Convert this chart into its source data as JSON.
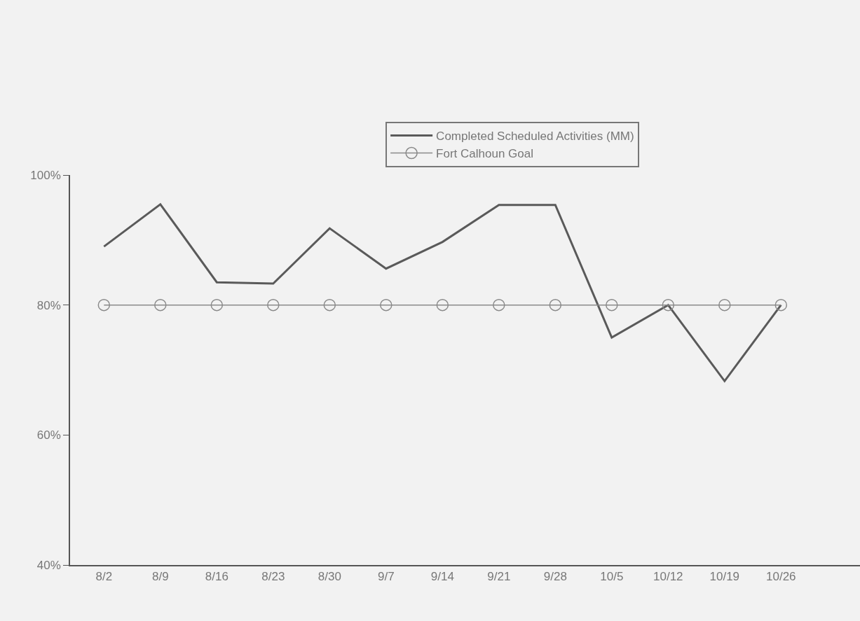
{
  "chart_data": {
    "type": "line",
    "categories": [
      "8/2",
      "8/9",
      "8/16",
      "8/23",
      "8/30",
      "9/7",
      "9/14",
      "9/21",
      "9/28",
      "10/5",
      "10/12",
      "10/19",
      "10/26"
    ],
    "series": [
      {
        "name": "Completed Scheduled Activities (MM)",
        "color": "#5a5a5a",
        "marker": "none",
        "values": [
          89,
          95.5,
          83.5,
          83.3,
          91.8,
          85.6,
          89.7,
          95.4,
          95.4,
          75,
          80,
          68.3,
          80
        ]
      },
      {
        "name": "Fort Calhoun Goal",
        "color": "#8a8a8a",
        "marker": "circle",
        "values": [
          80,
          80,
          80,
          80,
          80,
          80,
          80,
          80,
          80,
          80,
          80,
          80,
          80
        ]
      }
    ],
    "ylim": [
      40,
      100
    ],
    "yticks": [
      {
        "value": 40,
        "label": "40%"
      },
      {
        "value": 60,
        "label": "60%"
      },
      {
        "value": 80,
        "label": "80%"
      },
      {
        "value": 100,
        "label": "100%"
      }
    ],
    "grid": false,
    "legend": "top"
  }
}
